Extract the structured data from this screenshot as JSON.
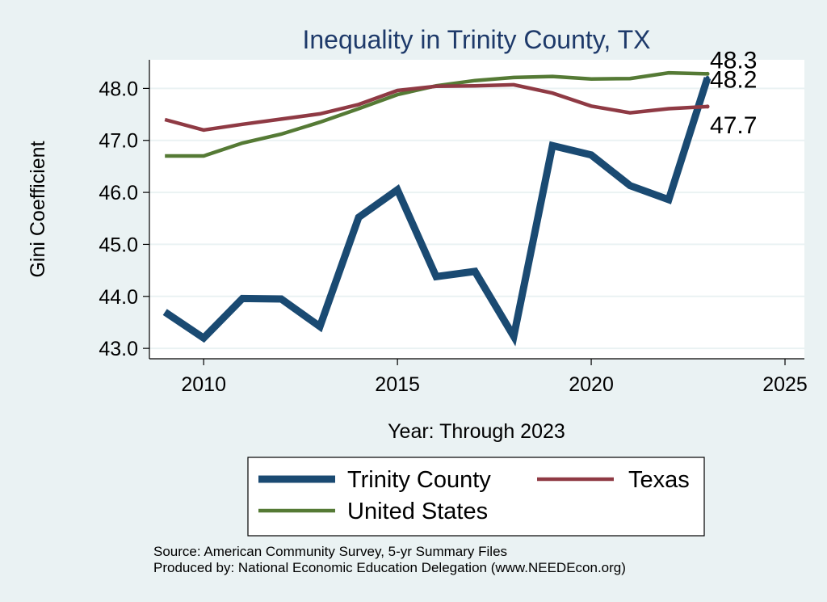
{
  "chart_data": {
    "type": "line",
    "title": "Inequality in Trinity County, TX",
    "xlabel": "Year: Through 2023",
    "ylabel": "Gini Coefficient",
    "xlim": [
      2008.6,
      2025.5
    ],
    "ylim": [
      42.8,
      48.55
    ],
    "x_ticks": [
      2010,
      2015,
      2020,
      2025
    ],
    "x_tick_labels": [
      "2010",
      "2015",
      "2020",
      "2025"
    ],
    "y_ticks": [
      43,
      44,
      45,
      46,
      47,
      48
    ],
    "y_tick_labels": [
      "43.0",
      "44.0",
      "45.0",
      "46.0",
      "47.0",
      "48.0"
    ],
    "grid": true,
    "legend_position": "bottom",
    "x": [
      2009,
      2010,
      2011,
      2012,
      2013,
      2014,
      2015,
      2016,
      2017,
      2018,
      2019,
      2020,
      2021,
      2022,
      2023
    ],
    "series": [
      {
        "name": "Trinity County",
        "color": "#1a4a72",
        "width": 9,
        "values": [
          43.7,
          43.2,
          43.96,
          43.95,
          43.42,
          45.52,
          46.05,
          44.38,
          44.48,
          43.23,
          46.9,
          46.72,
          46.13,
          45.86,
          48.2
        ],
        "end_label": "48.2"
      },
      {
        "name": "Texas",
        "color": "#8f3a44",
        "width": 4.5,
        "values": [
          47.4,
          47.2,
          47.31,
          47.41,
          47.51,
          47.69,
          47.96,
          48.04,
          48.05,
          48.07,
          47.91,
          47.66,
          47.53,
          47.61,
          47.65
        ],
        "end_label": "47.7"
      },
      {
        "name": "United States",
        "color": "#557a35",
        "width": 4.5,
        "values": [
          46.7,
          46.7,
          46.95,
          47.12,
          47.35,
          47.61,
          47.88,
          48.05,
          48.15,
          48.21,
          48.23,
          48.18,
          48.19,
          48.3,
          48.28
        ],
        "end_label": "48.3"
      }
    ]
  },
  "source": {
    "line1": "Source: American Community Survey, 5-yr Summary Files",
    "line2": "Produced by: National Economic Education Delegation (www.NEEDEcon.org)"
  }
}
